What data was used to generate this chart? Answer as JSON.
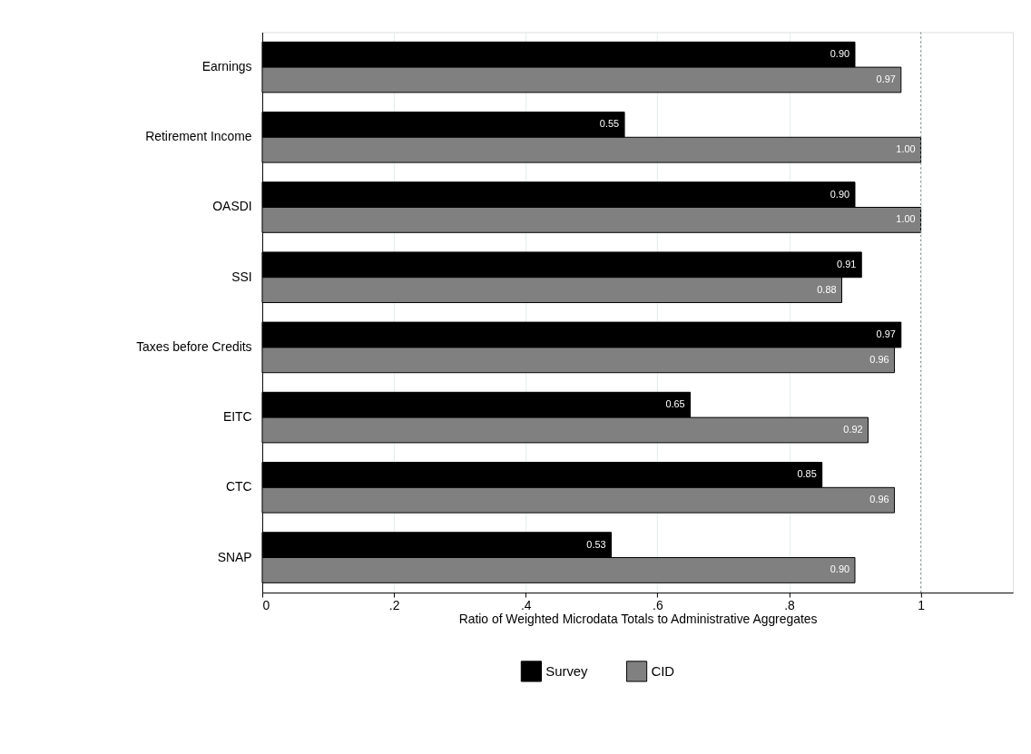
{
  "chart_data": {
    "type": "bar",
    "orientation": "horizontal",
    "xlabel": "Ratio of Weighted Microdata Totals to Administrative Aggregates",
    "categories": [
      "Earnings",
      "Retirement Income",
      "OASDI",
      "SSI",
      "Taxes before Credits",
      "EITC",
      "CTC",
      "SNAP"
    ],
    "series": [
      {
        "name": "Survey",
        "color": "#000000",
        "values": [
          0.9,
          0.55,
          0.9,
          0.91,
          0.97,
          0.65,
          0.85,
          0.53
        ],
        "value_labels": [
          "0.90",
          "0.55",
          "0.90",
          "0.91",
          "0.97",
          "0.65",
          "0.85",
          "0.53"
        ]
      },
      {
        "name": "CID",
        "color": "#808080",
        "values": [
          0.97,
          1.0,
          1.0,
          0.88,
          0.96,
          0.92,
          0.96,
          0.9
        ],
        "value_labels": [
          "0.97",
          "1.00",
          "1.00",
          "0.88",
          "0.96",
          "0.92",
          "0.96",
          "0.90"
        ]
      }
    ],
    "xlim": [
      0,
      1.14
    ],
    "xticks": [
      0,
      {
        "value": 0.2,
        "label": ".2"
      },
      {
        "value": 0.4,
        "label": ".4"
      },
      {
        "value": 0.6,
        "label": ".6"
      },
      {
        "value": 0.8,
        "label": ".8"
      },
      1
    ],
    "ref_lines": [
      {
        "axis": "x",
        "value": 1,
        "color": "#808080",
        "line_style": "dotted"
      }
    ],
    "grid": "x",
    "legend": "bottom"
  }
}
